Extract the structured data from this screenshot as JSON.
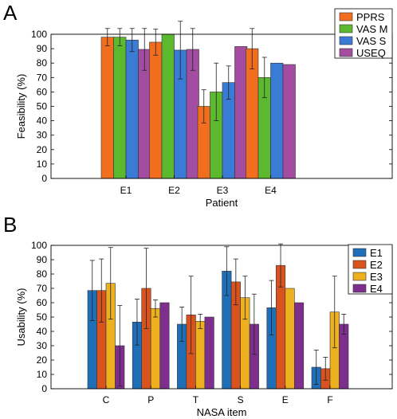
{
  "panels": [
    {
      "letter": "A"
    },
    {
      "letter": "B"
    }
  ],
  "chart_data": [
    {
      "type": "bar",
      "xlabel": "Patient",
      "ylabel": "Feasibility (%)",
      "ylim": [
        0,
        100
      ],
      "yticks": [
        0,
        10,
        20,
        30,
        40,
        50,
        60,
        70,
        80,
        90,
        100
      ],
      "categories": [
        "E1",
        "E2",
        "E3",
        "E4"
      ],
      "legend_position": "top-right",
      "grid": false,
      "series": [
        {
          "name": "PPRS",
          "color": "#F26E1F",
          "values": [
            98,
            94.5,
            50,
            90
          ],
          "errors": [
            6,
            9,
            11.5,
            14
          ]
        },
        {
          "name": "VAS M",
          "color": "#5CB82E",
          "values": [
            98,
            100,
            60,
            70
          ],
          "errors": [
            6,
            0,
            20,
            14
          ]
        },
        {
          "name": "VAS S",
          "color": "#3A7BD5",
          "values": [
            96,
            89,
            66.5,
            80
          ],
          "errors": [
            8,
            20,
            11.5,
            0
          ]
        },
        {
          "name": "USEQ",
          "color": "#A24DA0",
          "values": [
            89.5,
            89.5,
            91.5,
            79
          ],
          "errors": [
            14.5,
            14.5,
            0,
            0
          ]
        }
      ]
    },
    {
      "type": "bar",
      "xlabel": "NASA item",
      "ylabel": "Usability (%)",
      "ylim": [
        0,
        100
      ],
      "yticks": [
        0,
        10,
        20,
        30,
        40,
        50,
        60,
        70,
        80,
        90,
        100
      ],
      "categories": [
        "C",
        "P",
        "T",
        "S",
        "E",
        "F"
      ],
      "legend_position": "top-right",
      "grid": false,
      "series": [
        {
          "name": "E1",
          "color": "#1F6FB8",
          "values": [
            68.5,
            46.5,
            45,
            82,
            56.5,
            15
          ],
          "errors": [
            21,
            16,
            12,
            17,
            19,
            12
          ]
        },
        {
          "name": "E2",
          "color": "#D9531E",
          "values": [
            68.5,
            70,
            51.5,
            74.5,
            86,
            14
          ],
          "errors": [
            22,
            28,
            27,
            16,
            15,
            8
          ]
        },
        {
          "name": "E3",
          "color": "#EDB120",
          "values": [
            73.5,
            56,
            47,
            63.5,
            70,
            53.5
          ],
          "errors": [
            25,
            6,
            5,
            15,
            0,
            25
          ]
        },
        {
          "name": "E4",
          "color": "#7E2F8E",
          "values": [
            30,
            60,
            50,
            45,
            60,
            45
          ],
          "errors": [
            28,
            0,
            0,
            21,
            0,
            7
          ]
        }
      ]
    }
  ]
}
